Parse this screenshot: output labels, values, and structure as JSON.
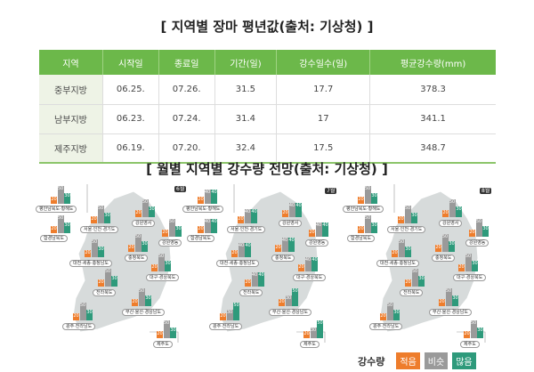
{
  "table_title": "[ 지역별 장마 평년값(출처: 기상청) ]",
  "table": {
    "headers": [
      "지역",
      "시작일",
      "종료일",
      "기간(일)",
      "강수일수(일)",
      "평균강수량(mm)"
    ],
    "rows": [
      [
        "중부지방",
        "06.25.",
        "07.26.",
        "31.5",
        "17.7",
        "378.3"
      ],
      [
        "남부지방",
        "06.23.",
        "07.24.",
        "31.4",
        "17",
        "341.1"
      ],
      [
        "제주지방",
        "06.19.",
        "07.20.",
        "32.4",
        "17.5",
        "348.7"
      ]
    ]
  },
  "maps_title": "[ 월별 지역별 강수량 전망(출처: 기상청) ]",
  "colors": {
    "less": "#ee7d2c",
    "similar": "#9a9a9a",
    "more": "#2e9a7b",
    "header": "#6cb84a",
    "land": "#d7dbdb"
  },
  "regions": [
    "평안남북도·황해도",
    "함경남북도",
    "서울·인천·경기도",
    "강원영서",
    "강원영동",
    "충청북도",
    "대전·세종·충청남도",
    "대구·경상북도",
    "전라북도",
    "부산·울산·경상남도",
    "광주·전라남도",
    "제주도"
  ],
  "maps": [
    {
      "month": "6월",
      "values": [
        [
          20,
          50,
          30
        ],
        [
          20,
          50,
          30
        ],
        [
          20,
          50,
          30
        ],
        [
          20,
          50,
          30
        ],
        [
          20,
          50,
          30
        ],
        [
          20,
          50,
          30
        ],
        [
          20,
          50,
          30
        ],
        [
          20,
          50,
          30
        ],
        [
          20,
          50,
          30
        ],
        [
          20,
          50,
          30
        ],
        [
          20,
          50,
          30
        ],
        [
          20,
          50,
          30
        ]
      ]
    },
    {
      "month": "7월",
      "values": [
        [
          20,
          40,
          40
        ],
        [
          20,
          40,
          40
        ],
        [
          20,
          40,
          40
        ],
        [
          20,
          40,
          40
        ],
        [
          20,
          40,
          40
        ],
        [
          20,
          40,
          40
        ],
        [
          20,
          40,
          40
        ],
        [
          20,
          40,
          40
        ],
        [
          20,
          40,
          40
        ],
        [
          20,
          30,
          50
        ],
        [
          20,
          30,
          50
        ],
        [
          20,
          30,
          50
        ]
      ]
    },
    {
      "month": "8월",
      "values": [
        [
          20,
          50,
          30
        ],
        [
          20,
          50,
          30
        ],
        [
          20,
          50,
          30
        ],
        [
          20,
          50,
          30
        ],
        [
          20,
          50,
          30
        ],
        [
          20,
          50,
          30
        ],
        [
          20,
          50,
          30
        ],
        [
          20,
          50,
          30
        ],
        [
          20,
          50,
          30
        ],
        [
          20,
          50,
          30
        ],
        [
          20,
          50,
          30
        ],
        [
          20,
          50,
          30
        ]
      ]
    }
  ],
  "legend": {
    "title": "강수량",
    "items": [
      "적음",
      "비슷",
      "많음"
    ]
  }
}
